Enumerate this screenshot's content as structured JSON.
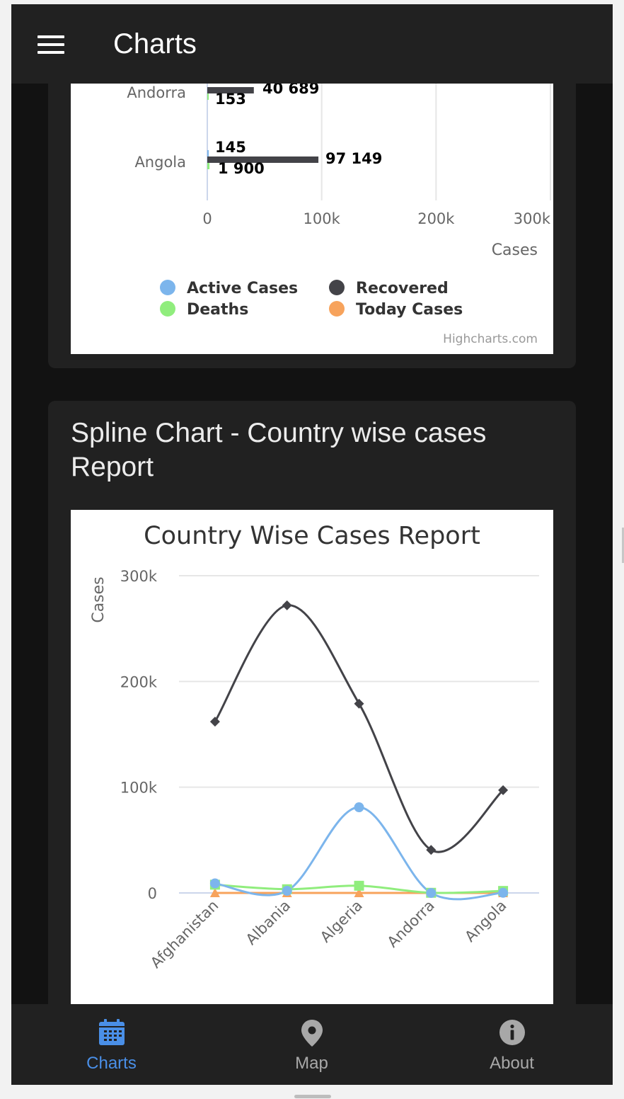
{
  "appbar": {
    "title": "Charts",
    "menu_icon": "menu-icon"
  },
  "bar_chart": {
    "chart_data": {
      "type": "bar",
      "orientation": "horizontal",
      "categories": [
        "Andorra",
        "Angola"
      ],
      "series": [
        {
          "name": "Active Cases",
          "color": "#7cb5ec",
          "values": [
            null,
            145
          ]
        },
        {
          "name": "Recovered",
          "color": "#434348",
          "values": [
            40689,
            97149
          ]
        },
        {
          "name": "Deaths",
          "color": "#90ed7d",
          "values": [
            153,
            1900
          ]
        },
        {
          "name": "Today Cases",
          "color": "#f7a35c",
          "values": [
            null,
            null
          ]
        }
      ],
      "data_labels": [
        {
          "category": "Andorra",
          "text": "40 689"
        },
        {
          "category": "Andorra",
          "text": "153"
        },
        {
          "category": "Angola",
          "text": "145"
        },
        {
          "category": "Angola",
          "text": "97 149"
        },
        {
          "category": "Angola",
          "text": "1 900"
        }
      ],
      "x_ticks": [
        "0",
        "100k",
        "200k",
        "300k"
      ],
      "xlim": [
        0,
        300000
      ],
      "axis_title": "Cases",
      "legend": [
        "Active Cases",
        "Recovered",
        "Deaths",
        "Today Cases"
      ],
      "legend_position": "bottom",
      "credits": "Highcharts.com"
    }
  },
  "spline_section": {
    "title": "Spline Chart - Country wise cases Report"
  },
  "spline_chart": {
    "chart_data": {
      "type": "line",
      "smoothing": "spline",
      "title": "Country Wise Cases Report",
      "ylabel": "Cases",
      "categories": [
        "Afghanistan",
        "Albania",
        "Algeria",
        "Andorra",
        "Angola"
      ],
      "y_ticks": [
        "0",
        "100k",
        "200k",
        "300k"
      ],
      "ylim": [
        0,
        300000
      ],
      "grid": true,
      "series": [
        {
          "name": "Recovered",
          "color": "#434348",
          "marker": "diamond",
          "values": [
            162000,
            272000,
            179000,
            40689,
            97149
          ]
        },
        {
          "name": "Active Cases",
          "color": "#7cb5ec",
          "marker": "circle",
          "values": [
            9000,
            2000,
            81000,
            0,
            145
          ]
        },
        {
          "name": "Deaths",
          "color": "#90ed7d",
          "marker": "square",
          "values": [
            7800,
            3500,
            6800,
            153,
            1900
          ]
        },
        {
          "name": "Today Cases",
          "color": "#f7a35c",
          "marker": "triangle",
          "values": [
            0,
            0,
            0,
            0,
            0
          ]
        }
      ]
    }
  },
  "bottom_nav": {
    "items": [
      {
        "label": "Charts",
        "icon": "calendar-icon",
        "active": true
      },
      {
        "label": "Map",
        "icon": "map-pin-icon",
        "active": false
      },
      {
        "label": "About",
        "icon": "info-icon",
        "active": false
      }
    ],
    "active_color": "#4a8fe7",
    "inactive_color": "#a8a8a8"
  }
}
